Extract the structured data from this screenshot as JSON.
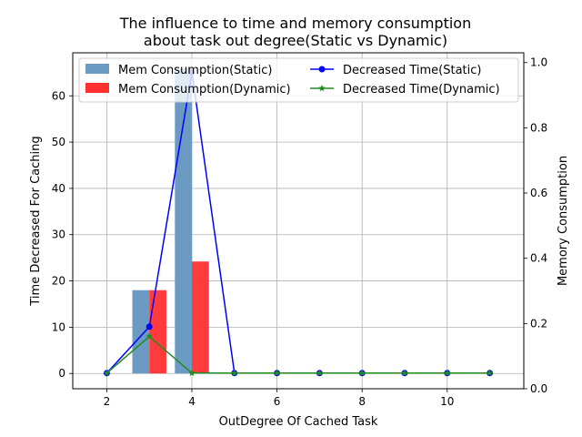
{
  "chart_data": {
    "type": "bar+line (twin y-axes)",
    "title_line1": "The influence to time and memory consumption",
    "title_line2": "about task out degree(Static vs Dynamic)",
    "xlabel": "OutDegree Of Cached Task",
    "ylabel_left": "Time Decreased For Caching",
    "ylabel_right": "Memory Consumption",
    "xlim": [
      1.2,
      11.8
    ],
    "ylim_left": [
      -3.3,
      69.3
    ],
    "ylim_right": [
      0.0,
      1.03
    ],
    "x_ticks": [
      2,
      4,
      6,
      8,
      10
    ],
    "y_ticks_left": [
      0,
      10,
      20,
      30,
      40,
      50,
      60
    ],
    "y_ticks_right": [
      "0.0",
      "0.2",
      "0.4",
      "0.6",
      "0.8",
      "1.0"
    ],
    "grid": true,
    "legend_placement": "top",
    "bar_series": [
      {
        "name": "Mem Consumption(Static)",
        "color": "#6b9bc3",
        "points": [
          {
            "x": 3,
            "y": 18
          },
          {
            "x": 4,
            "y": 66
          }
        ]
      },
      {
        "name": "Mem Consumption(Dynamic)",
        "color": "#ff3030",
        "points": [
          {
            "x": 3,
            "y": 18
          },
          {
            "x": 4,
            "y": 24.2
          }
        ]
      }
    ],
    "line_series": [
      {
        "name": "Decreased Time(Static)",
        "color": "#0000ff",
        "marker": "circle",
        "x": [
          2,
          3,
          4,
          5,
          6,
          7,
          8,
          9,
          10,
          11
        ],
        "y": [
          0.048,
          0.19,
          0.97,
          0.048,
          0.048,
          0.048,
          0.048,
          0.048,
          0.048,
          0.048
        ]
      },
      {
        "name": "Decreased Time(Dynamic)",
        "color": "#228b22",
        "marker": "star",
        "x": [
          2,
          3,
          4,
          5,
          6,
          7,
          8,
          9,
          10,
          11
        ],
        "y": [
          0.048,
          0.16,
          0.048,
          0.048,
          0.048,
          0.048,
          0.048,
          0.048,
          0.048,
          0.048
        ]
      }
    ]
  }
}
